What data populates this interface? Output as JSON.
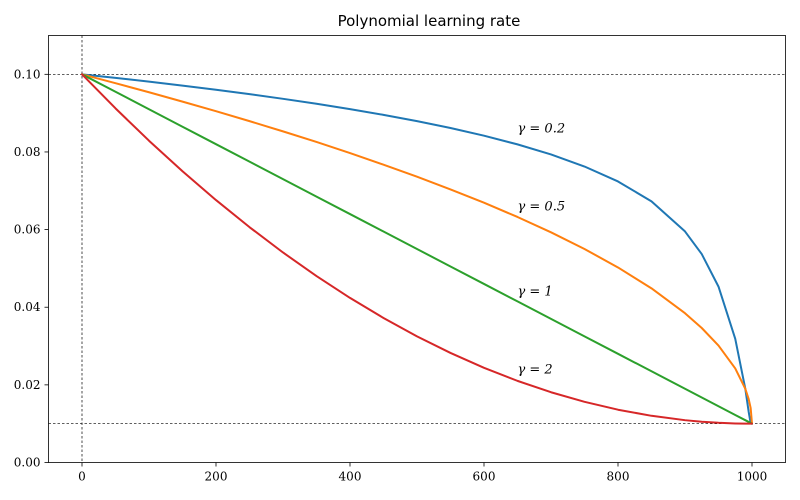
{
  "chart_data": {
    "type": "line",
    "title": "Polynomial learning rate",
    "xlabel": "",
    "ylabel": "",
    "xlim": [
      -50,
      1050
    ],
    "ylim": [
      0.0,
      0.11
    ],
    "xticks": [
      0,
      200,
      400,
      600,
      800,
      1000
    ],
    "yticks": [
      0.0,
      0.02,
      0.04,
      0.06,
      0.08,
      0.1
    ],
    "xtick_labels": [
      "0",
      "200",
      "400",
      "600",
      "800",
      "1000"
    ],
    "ytick_labels": [
      "0.00",
      "0.02",
      "0.04",
      "0.06",
      "0.08",
      "0.10"
    ],
    "grid": false,
    "legend": "none",
    "reference_lines": {
      "horizontal": [
        0.1,
        0.01
      ],
      "vertical": [
        0
      ]
    },
    "x": [
      0,
      50,
      100,
      150,
      200,
      250,
      300,
      350,
      400,
      450,
      500,
      550,
      600,
      650,
      700,
      750,
      800,
      850,
      900,
      925,
      950,
      975,
      990,
      995,
      998,
      1000
    ],
    "series": [
      {
        "name": "γ = 0.2",
        "label": "γ = 0.2",
        "label_at": [
          650,
          0.086
        ],
        "color": "#1f77b4",
        "values": [
          0.1,
          0.09908,
          0.09811,
          0.09709,
          0.09602,
          0.09489,
          0.09369,
          0.09241,
          0.09104,
          0.08956,
          0.08795,
          0.08617,
          0.08419,
          0.08195,
          0.07935,
          0.07625,
          0.0724,
          0.06728,
          0.05953,
          0.05369,
          0.04531,
          0.03186,
          0.019,
          0.0131,
          0.0101,
          0.01
        ]
      },
      {
        "name": "γ = 0.5",
        "label": "γ = 0.5",
        "label_at": [
          650,
          0.066
        ],
        "color": "#ff7f0e",
        "values": [
          0.1,
          0.09772,
          0.09538,
          0.09297,
          0.0905,
          0.08794,
          0.0853,
          0.08257,
          0.07971,
          0.07673,
          0.07364,
          0.07036,
          0.06692,
          0.06325,
          0.0593,
          0.055,
          0.05025,
          0.04486,
          0.03846,
          0.03465,
          0.03012,
          0.02423,
          0.019,
          0.01637,
          0.01402,
          0.01
        ]
      },
      {
        "name": "γ = 1",
        "label": "γ = 1",
        "label_at": [
          650,
          0.044
        ],
        "color": "#2ca02c",
        "values": [
          0.1,
          0.0955,
          0.091,
          0.0865,
          0.082,
          0.0775,
          0.073,
          0.0685,
          0.064,
          0.0595,
          0.055,
          0.0505,
          0.046,
          0.0415,
          0.037,
          0.0325,
          0.028,
          0.0235,
          0.019,
          0.01675,
          0.0145,
          0.01225,
          0.0109,
          0.01045,
          0.01018,
          0.01
        ]
      },
      {
        "name": "γ = 2",
        "label": "γ = 2",
        "label_at": [
          650,
          0.024
        ],
        "color": "#d62728",
        "values": [
          0.1,
          0.09123,
          0.0829,
          0.07503,
          0.0676,
          0.06063,
          0.0541,
          0.04803,
          0.0424,
          0.03723,
          0.0325,
          0.02823,
          0.0244,
          0.02103,
          0.0181,
          0.01563,
          0.0136,
          0.01203,
          0.0109,
          0.01051,
          0.01023,
          0.01006,
          0.01001,
          0.01,
          0.01,
          0.01
        ]
      }
    ]
  }
}
